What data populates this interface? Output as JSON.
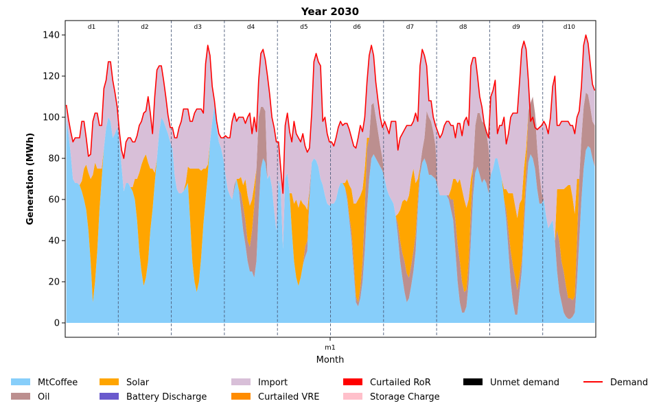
{
  "chart_data": {
    "type": "area",
    "title": "Year 2030",
    "xlabel": "Month",
    "ylabel": "Generation (MWh)",
    "ylim": [
      -7,
      147
    ],
    "yticks": [
      0,
      20,
      40,
      60,
      80,
      100,
      120,
      140
    ],
    "x_month_label": "m1",
    "day_labels": [
      "d1",
      "d2",
      "d3",
      "d4",
      "d5",
      "d6",
      "d7",
      "d8",
      "d9",
      "d10"
    ],
    "hours_per_day": 24,
    "grid": false,
    "legend_placement": "bottom",
    "legend": [
      {
        "name": "MtCoffee",
        "kind": "area",
        "color": "#87CEFA"
      },
      {
        "name": "Oil",
        "kind": "area",
        "color": "#BC8F8F"
      },
      {
        "name": "Solar",
        "kind": "area",
        "color": "#FFA500"
      },
      {
        "name": "Battery Discharge",
        "kind": "area",
        "color": "#6A5ACD"
      },
      {
        "name": "Import",
        "kind": "area",
        "color": "#D8BFD8"
      },
      {
        "name": "Curtailed VRE",
        "kind": "area",
        "color": "#FF8C00"
      },
      {
        "name": "Curtailed RoR",
        "kind": "area",
        "color": "#FF0000"
      },
      {
        "name": "Storage Charge",
        "kind": "area",
        "color": "#FFC0CB"
      },
      {
        "name": "Unmet demand",
        "kind": "area",
        "color": "#000000"
      },
      {
        "name": "Demand",
        "kind": "line",
        "color": "#FF0000"
      }
    ],
    "days": [
      {
        "mtcoffee": [
          100,
          92,
          82,
          70,
          68,
          68,
          67,
          64,
          60,
          55,
          45,
          30,
          10,
          20,
          35,
          55,
          70,
          85,
          95,
          100,
          98,
          90,
          92,
          95
        ],
        "oil": [
          0,
          0,
          0,
          0,
          0,
          0,
          0,
          0,
          0,
          0,
          0,
          0,
          0,
          0,
          0,
          0,
          0,
          0,
          0,
          0,
          0,
          0,
          0,
          0
        ],
        "solar": [
          0,
          0,
          0,
          0,
          0,
          0,
          0,
          5,
          15,
          22,
          28,
          40,
          62,
          58,
          40,
          20,
          5,
          0,
          0,
          0,
          0,
          0,
          0,
          0
        ],
        "demand": [
          106,
          99,
          93,
          88,
          90,
          90,
          90,
          98,
          98,
          90,
          81,
          82,
          98,
          102,
          102,
          96,
          96,
          114,
          118,
          127,
          127,
          118,
          112,
          105
        ]
      },
      {
        "mtcoffee": [
          88,
          76,
          64,
          68,
          68,
          66,
          64,
          60,
          50,
          35,
          25,
          18,
          22,
          30,
          45,
          55,
          68,
          80,
          93,
          100,
          98,
          95,
          92,
          88
        ],
        "oil": [
          0,
          0,
          0,
          0,
          0,
          0,
          0,
          0,
          0,
          0,
          0,
          0,
          0,
          0,
          0,
          0,
          0,
          0,
          0,
          0,
          0,
          0,
          0,
          0
        ],
        "solar": [
          0,
          0,
          0,
          0,
          0,
          0,
          2,
          10,
          20,
          38,
          52,
          62,
          60,
          48,
          30,
          20,
          5,
          0,
          0,
          0,
          0,
          0,
          0,
          0
        ],
        "demand": [
          93,
          84,
          80,
          88,
          90,
          90,
          88,
          88,
          91,
          96,
          98,
          102,
          103,
          110,
          102,
          92,
          110,
          123,
          125,
          125,
          118,
          110,
          101,
          95
        ]
      },
      {
        "mtcoffee": [
          85,
          72,
          65,
          63,
          63,
          64,
          66,
          68,
          50,
          30,
          20,
          15,
          20,
          32,
          48,
          60,
          72,
          88,
          98,
          106,
          95,
          88,
          85,
          80
        ],
        "oil": [
          0,
          0,
          0,
          0,
          0,
          0,
          0,
          0,
          0,
          0,
          0,
          0,
          0,
          0,
          0,
          0,
          0,
          0,
          0,
          0,
          0,
          0,
          0,
          0
        ],
        "solar": [
          0,
          0,
          0,
          0,
          0,
          0,
          2,
          8,
          25,
          45,
          55,
          60,
          55,
          42,
          27,
          15,
          5,
          0,
          0,
          0,
          0,
          0,
          0,
          0
        ],
        "demand": [
          95,
          90,
          90,
          95,
          98,
          104,
          104,
          104,
          98,
          98,
          102,
          104,
          104,
          104,
          102,
          126,
          135,
          130,
          115,
          108,
          98,
          92,
          90,
          90
        ]
      },
      {
        "mtcoffee": [
          72,
          65,
          62,
          60,
          65,
          70,
          65,
          55,
          45,
          38,
          30,
          25,
          25,
          22,
          30,
          55,
          75,
          80,
          78,
          70,
          72,
          66,
          55,
          45
        ],
        "oil": [
          0,
          0,
          0,
          0,
          2,
          0,
          0,
          8,
          12,
          12,
          10,
          12,
          20,
          35,
          45,
          45,
          30,
          25,
          25,
          0,
          0,
          0,
          0,
          0
        ],
        "solar": [
          0,
          0,
          0,
          0,
          0,
          0,
          5,
          8,
          10,
          20,
          22,
          20,
          15,
          10,
          0,
          0,
          0,
          0,
          0,
          0,
          0,
          0,
          0,
          0
        ],
        "demand": [
          91,
          90,
          90,
          98,
          102,
          98,
          100,
          100,
          100,
          97,
          100,
          102,
          92,
          100,
          93,
          118,
          131,
          133,
          128,
          120,
          111,
          100,
          95,
          88
        ]
      },
      {
        "mtcoffee": [
          70,
          64,
          36,
          70,
          73,
          63,
          45,
          30,
          22,
          18,
          22,
          28,
          32,
          35,
          60,
          78,
          80,
          79,
          76,
          70,
          67,
          62,
          58,
          57
        ],
        "oil": [
          0,
          0,
          0,
          0,
          0,
          0,
          0,
          0,
          0,
          0,
          0,
          0,
          5,
          5,
          5,
          0,
          0,
          0,
          0,
          0,
          0,
          0,
          0,
          0
        ],
        "solar": [
          0,
          0,
          0,
          0,
          0,
          0,
          18,
          28,
          38,
          38,
          38,
          30,
          20,
          15,
          0,
          0,
          0,
          0,
          0,
          0,
          0,
          0,
          0,
          0
        ],
        "demand": [
          88,
          75,
          63,
          96,
          102,
          93,
          88,
          98,
          92,
          90,
          88,
          92,
          86,
          83,
          85,
          102,
          127,
          131,
          127,
          125,
          98,
          100,
          92,
          88
        ]
      },
      {
        "mtcoffee": [
          58,
          58,
          60,
          65,
          68,
          68,
          66,
          60,
          50,
          40,
          25,
          10,
          8,
          12,
          20,
          35,
          55,
          70,
          80,
          82,
          80,
          78,
          76,
          74
        ],
        "oil": [
          0,
          0,
          0,
          0,
          0,
          0,
          0,
          2,
          2,
          5,
          5,
          3,
          2,
          5,
          10,
          20,
          30,
          20,
          26,
          25,
          20,
          15,
          10,
          6
        ],
        "solar": [
          0,
          0,
          0,
          0,
          0,
          0,
          2,
          8,
          15,
          20,
          28,
          45,
          50,
          45,
          35,
          20,
          5,
          0,
          0,
          0,
          0,
          0,
          0,
          0
        ],
        "demand": [
          88,
          86,
          90,
          95,
          98,
          96,
          97,
          97,
          94,
          90,
          86,
          85,
          90,
          96,
          93,
          100,
          117,
          130,
          135,
          130,
          117,
          108,
          100,
          95
        ]
      },
      {
        "mtcoffee": [
          70,
          65,
          62,
          60,
          58,
          52,
          42,
          30,
          22,
          15,
          10,
          12,
          18,
          25,
          35,
          55,
          72,
          78,
          80,
          77,
          72,
          72,
          71,
          70
        ],
        "oil": [
          0,
          0,
          0,
          0,
          0,
          0,
          6,
          10,
          12,
          15,
          14,
          10,
          10,
          10,
          8,
          5,
          4,
          6,
          10,
          26,
          28,
          26,
          22,
          16
        ],
        "solar": [
          0,
          0,
          0,
          0,
          0,
          0,
          5,
          15,
          25,
          30,
          35,
          40,
          42,
          40,
          25,
          10,
          0,
          0,
          0,
          0,
          0,
          0,
          0,
          0
        ],
        "demand": [
          98,
          95,
          92,
          98,
          98,
          98,
          84,
          90,
          92,
          94,
          96,
          96,
          96,
          98,
          102,
          98,
          125,
          133,
          130,
          125,
          108,
          108,
          100,
          96
        ]
      },
      {
        "mtcoffee": [
          66,
          62,
          62,
          62,
          62,
          60,
          55,
          50,
          35,
          20,
          10,
          5,
          5,
          8,
          20,
          40,
          62,
          73,
          76,
          72,
          68,
          70,
          68,
          63
        ],
        "oil": [
          0,
          0,
          0,
          0,
          0,
          2,
          5,
          10,
          15,
          18,
          20,
          15,
          10,
          8,
          10,
          15,
          14,
          23,
          26,
          30,
          30,
          27,
          25,
          22
        ],
        "solar": [
          0,
          0,
          0,
          0,
          0,
          0,
          5,
          10,
          20,
          30,
          40,
          45,
          45,
          40,
          30,
          15,
          0,
          0,
          0,
          0,
          0,
          0,
          0,
          0
        ],
        "demand": [
          93,
          90,
          92,
          96,
          98,
          98,
          96,
          96,
          90,
          97,
          97,
          91,
          98,
          100,
          96,
          125,
          129,
          129,
          120,
          110,
          105,
          97,
          93,
          90
        ]
      },
      {
        "mtcoffee": [
          72,
          75,
          80,
          80,
          75,
          70,
          60,
          50,
          35,
          20,
          10,
          4,
          4,
          15,
          25,
          45,
          65,
          78,
          82,
          80,
          75,
          65,
          58,
          58
        ],
        "oil": [
          0,
          0,
          0,
          0,
          0,
          0,
          0,
          5,
          10,
          15,
          18,
          18,
          12,
          8,
          5,
          8,
          10,
          25,
          25,
          30,
          27,
          20,
          15,
          5
        ],
        "solar": [
          0,
          0,
          0,
          0,
          0,
          0,
          5,
          10,
          18,
          28,
          35,
          35,
          35,
          35,
          30,
          22,
          10,
          0,
          0,
          0,
          0,
          0,
          0,
          0
        ],
        "demand": [
          110,
          113,
          118,
          92,
          96,
          96,
          100,
          87,
          92,
          100,
          102,
          102,
          102,
          117,
          133,
          137,
          133,
          118,
          98,
          100,
          95,
          94,
          95,
          96
        ]
      },
      {
        "mtcoffee": [
          60,
          52,
          46,
          48,
          50,
          40,
          25,
          15,
          10,
          5,
          3,
          2,
          2,
          3,
          5,
          20,
          40,
          60,
          75,
          84,
          86,
          85,
          80,
          76
        ],
        "oil": [
          0,
          0,
          0,
          0,
          0,
          0,
          20,
          25,
          20,
          20,
          15,
          10,
          10,
          8,
          8,
          20,
          30,
          30,
          30,
          28,
          25,
          20,
          18,
          20
        ],
        "solar": [
          0,
          0,
          0,
          0,
          0,
          0,
          20,
          25,
          35,
          40,
          48,
          55,
          55,
          50,
          40,
          30,
          0,
          0,
          0,
          0,
          0,
          0,
          0,
          0
        ],
        "demand": [
          98,
          96,
          92,
          100,
          115,
          120,
          96,
          96,
          98,
          98,
          98,
          98,
          96,
          96,
          92,
          100,
          103,
          115,
          135,
          140,
          136,
          126,
          116,
          113
        ]
      }
    ]
  }
}
